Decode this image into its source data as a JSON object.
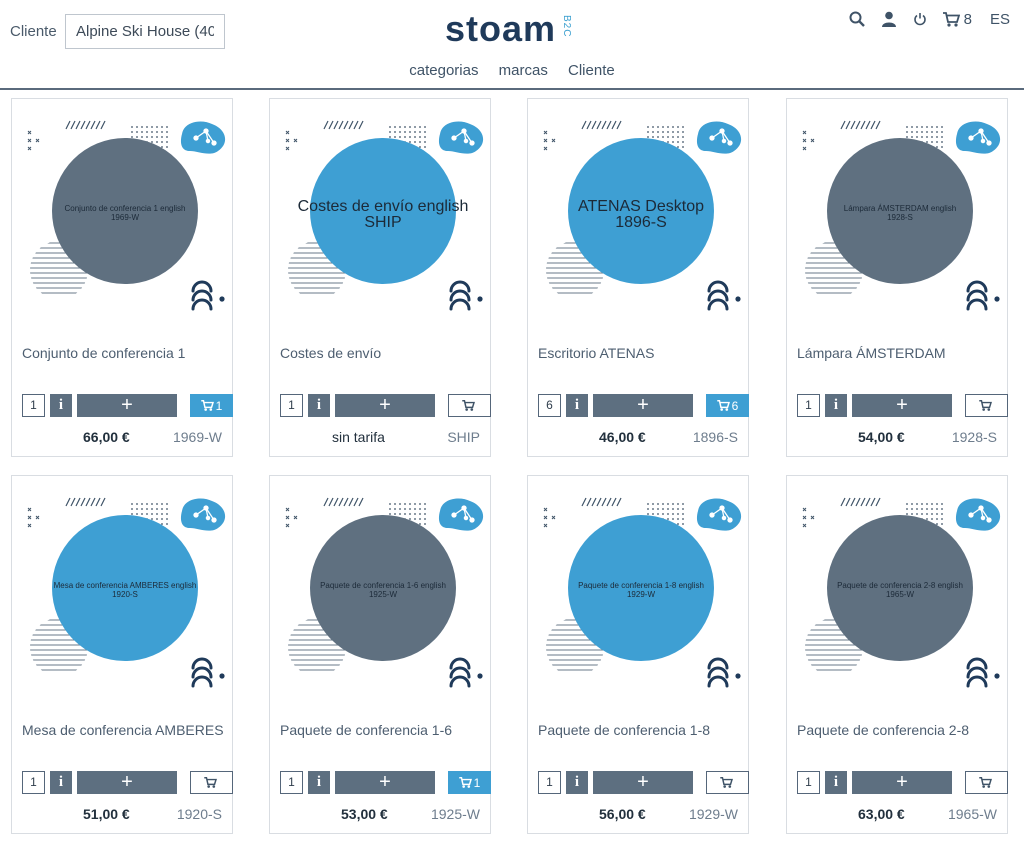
{
  "header": {
    "cliente_label": "Cliente",
    "cliente_value": "Alpine Ski House (40",
    "logo_text": "stoam",
    "logo_suffix": "B2C",
    "cart_count": "8",
    "language": "ES",
    "nav": [
      "categorias",
      "marcas",
      "Cliente"
    ]
  },
  "colors": {
    "accent": "#3e9fd3",
    "dark_circle": "#5f7080",
    "navy": "#1f3a5a",
    "button": "#5d6f80"
  },
  "products": [
    {
      "name": "Conjunto de conferencia 1",
      "image_text": "Conjunto de conferencia 1 english",
      "image_code": "1969-W",
      "circle": "dark",
      "big": false,
      "qty": "1",
      "cart_label": "1",
      "in_cart": true,
      "price": "66,00 €",
      "code": "1969-W"
    },
    {
      "name": "Costes de envío",
      "image_text": "Costes de envío english",
      "image_code": "SHIP",
      "circle": "blue",
      "big": true,
      "qty": "1",
      "cart_label": "",
      "in_cart": false,
      "price": "sin tarifa",
      "code": "SHIP"
    },
    {
      "name": "Escritorio ATENAS",
      "image_text": "ATENAS Desktop",
      "image_code": "1896-S",
      "circle": "blue",
      "big": true,
      "qty": "6",
      "cart_label": "6",
      "in_cart": true,
      "price": "46,00 €",
      "code": "1896-S"
    },
    {
      "name": "Lámpara ÁMSTERDAM",
      "image_text": "Lámpara ÁMSTERDAM english",
      "image_code": "1928-S",
      "circle": "dark",
      "big": false,
      "qty": "1",
      "cart_label": "",
      "in_cart": false,
      "price": "54,00 €",
      "code": "1928-S"
    },
    {
      "name": "Mesa de conferencia AMBERES",
      "image_text": "Mesa de conferencia AMBERES english",
      "image_code": "1920-S",
      "circle": "blue",
      "big": false,
      "qty": "1",
      "cart_label": "",
      "in_cart": false,
      "price": "51,00 €",
      "code": "1920-S"
    },
    {
      "name": "Paquete de conferencia 1-6",
      "image_text": "Paquete de conferencia 1-6 english",
      "image_code": "1925-W",
      "circle": "dark",
      "big": false,
      "qty": "1",
      "cart_label": "1",
      "in_cart": true,
      "price": "53,00 €",
      "code": "1925-W"
    },
    {
      "name": "Paquete de conferencia 1-8",
      "image_text": "Paquete de conferencia 1-8 english",
      "image_code": "1929-W",
      "circle": "blue",
      "big": false,
      "qty": "1",
      "cart_label": "",
      "in_cart": false,
      "price": "56,00 €",
      "code": "1929-W"
    },
    {
      "name": "Paquete de conferencia 2-8",
      "image_text": "Paquete de conferencia 2-8 english",
      "image_code": "1965-W",
      "circle": "dark",
      "big": false,
      "qty": "1",
      "cart_label": "",
      "in_cart": false,
      "price": "63,00 €",
      "code": "1965-W"
    }
  ]
}
